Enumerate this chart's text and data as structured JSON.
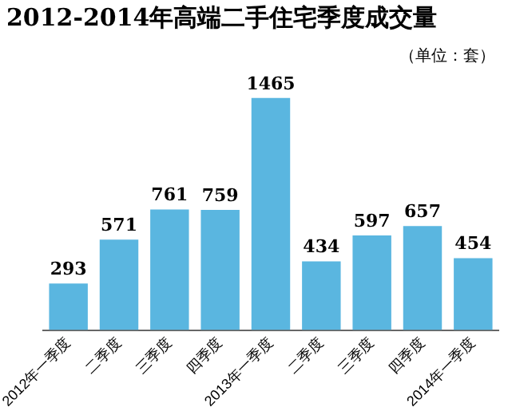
{
  "chart_data": {
    "type": "bar",
    "title": "2012-2014年高端二手住宅季度成交量",
    "annotations": [
      "（单位：套）"
    ],
    "categories": [
      "2012年一季度",
      "二季度",
      "三季度",
      "四季度",
      "2013年一季度",
      "二季度",
      "三季度",
      "四季度",
      "2014年一季度"
    ],
    "values": [
      293,
      571,
      761,
      759,
      1465,
      434,
      597,
      657,
      454
    ],
    "color": "#5ab6e0",
    "data_labels": true,
    "legend": false,
    "grid": false
  }
}
